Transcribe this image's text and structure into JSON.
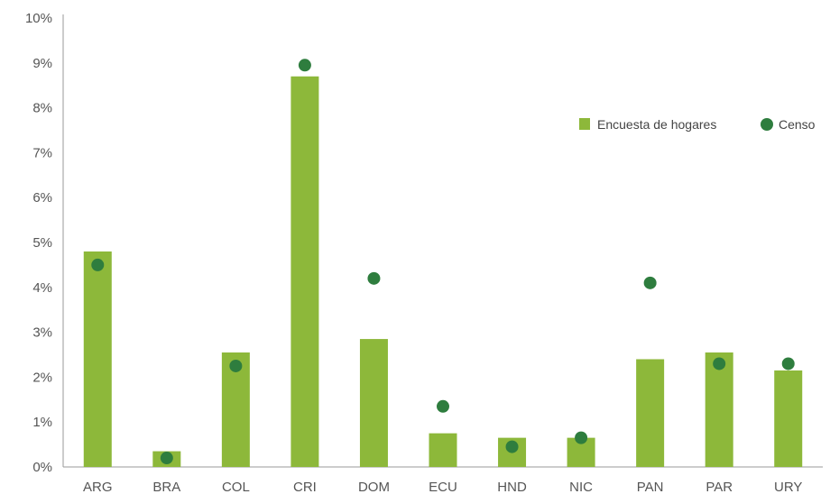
{
  "chart_data": {
    "type": "bar",
    "categories": [
      "ARG",
      "BRA",
      "COL",
      "CRI",
      "DOM",
      "ECU",
      "HND",
      "NIC",
      "PAN",
      "PAR",
      "URY"
    ],
    "series": [
      {
        "name": "Encuesta de hogares",
        "kind": "bar",
        "color": "#8DB83A",
        "values": [
          4.8,
          0.35,
          2.55,
          8.7,
          2.85,
          0.75,
          0.65,
          0.65,
          2.4,
          2.55,
          2.15
        ]
      },
      {
        "name": "Censo",
        "kind": "dot",
        "color": "#2E7D3E",
        "values": [
          4.5,
          0.2,
          2.25,
          8.95,
          4.2,
          1.35,
          0.45,
          0.65,
          4.1,
          2.3,
          2.3
        ]
      }
    ],
    "y_ticks": [
      "0%",
      "1%",
      "2%",
      "3%",
      "4%",
      "5%",
      "6%",
      "7%",
      "8%",
      "9%",
      "10%"
    ],
    "ylim": [
      0,
      10
    ],
    "y_unit": "%",
    "grid": false,
    "legend_position": "right"
  }
}
